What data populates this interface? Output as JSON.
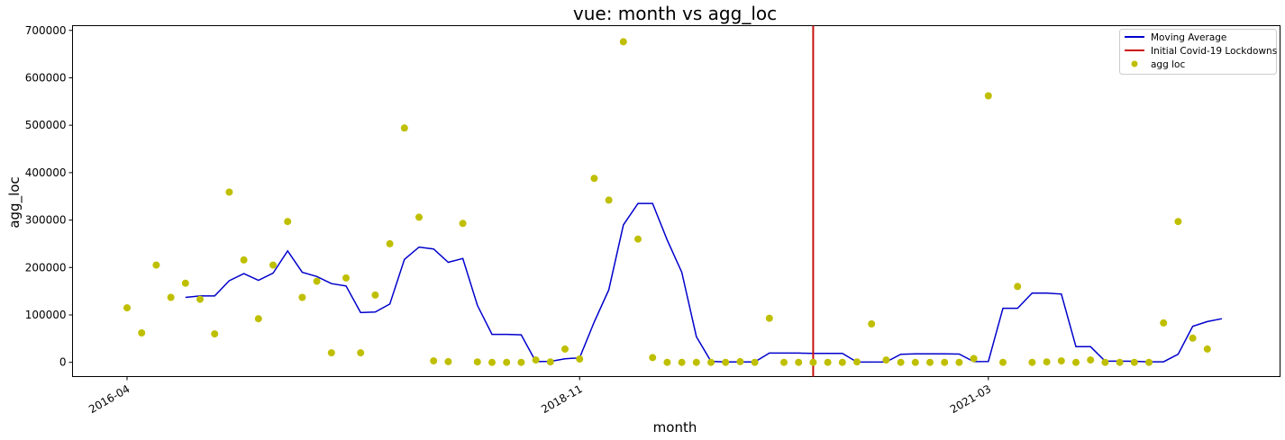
{
  "chart_data": {
    "type": "scatter",
    "title": "vue: month vs agg_loc",
    "xlabel": "month",
    "ylabel": "agg_loc",
    "x_tick_labels": [
      "2016-04",
      "2018-11",
      "2021-03"
    ],
    "y_tick_labels": [
      "0",
      "100000",
      "200000",
      "300000",
      "400000",
      "500000",
      "600000",
      "700000"
    ],
    "ylim": [
      -30000,
      710000
    ],
    "grid": false,
    "legend_position": "top-right",
    "series": [
      {
        "name": "Moving Average",
        "kind": "line",
        "color": "#0000cc",
        "points": [
          [
            "2016-08-01",
            137000
          ],
          [
            "2016-09-01",
            140000
          ],
          [
            "2016-10-01",
            140000
          ],
          [
            "2016-11-01",
            172000
          ],
          [
            "2016-12-01",
            187000
          ],
          [
            "2017-01-01",
            173000
          ],
          [
            "2017-02-01",
            188000
          ],
          [
            "2017-03-01",
            235000
          ],
          [
            "2017-04-01",
            190000
          ],
          [
            "2017-05-01",
            181000
          ],
          [
            "2017-06-01",
            166000
          ],
          [
            "2017-07-01",
            161000
          ],
          [
            "2017-08-01",
            105000
          ],
          [
            "2017-09-01",
            106000
          ],
          [
            "2017-10-01",
            123000
          ],
          [
            "2017-11-01",
            217000
          ],
          [
            "2017-12-01",
            243000
          ],
          [
            "2018-01-01",
            239000
          ],
          [
            "2018-02-01",
            211000
          ],
          [
            "2018-03-01",
            219000
          ],
          [
            "2018-04-01",
            120000
          ],
          [
            "2018-05-01",
            59000
          ],
          [
            "2018-06-01",
            59000
          ],
          [
            "2018-07-01",
            58000
          ],
          [
            "2018-08-01",
            1500
          ],
          [
            "2018-09-01",
            2000
          ],
          [
            "2018-10-01",
            7500
          ],
          [
            "2018-11-01",
            9500
          ],
          [
            "2018-12-01",
            85000
          ],
          [
            "2019-01-01",
            153000
          ],
          [
            "2019-02-01",
            290000
          ],
          [
            "2019-03-01",
            335000
          ],
          [
            "2019-04-01",
            335000
          ],
          [
            "2019-05-01",
            258000
          ],
          [
            "2019-06-01",
            190000
          ],
          [
            "2019-07-01",
            54000
          ],
          [
            "2019-08-01",
            2000
          ],
          [
            "2019-09-01",
            800
          ],
          [
            "2019-10-01",
            800
          ],
          [
            "2019-11-01",
            800
          ],
          [
            "2019-12-01",
            19500
          ],
          [
            "2020-01-01",
            19500
          ],
          [
            "2020-02-01",
            19500
          ],
          [
            "2020-03-01",
            19000
          ],
          [
            "2020-04-01",
            19000
          ],
          [
            "2020-05-01",
            19000
          ],
          [
            "2020-06-01",
            500
          ],
          [
            "2020-07-01",
            500
          ],
          [
            "2020-08-01",
            700
          ],
          [
            "2020-09-01",
            17000
          ],
          [
            "2020-10-01",
            18000
          ],
          [
            "2020-11-01",
            18000
          ],
          [
            "2020-12-01",
            18000
          ],
          [
            "2021-01-01",
            17500
          ],
          [
            "2021-02-01",
            1500
          ],
          [
            "2021-03-01",
            1800
          ],
          [
            "2021-04-01",
            114000
          ],
          [
            "2021-05-01",
            114000
          ],
          [
            "2021-06-01",
            146000
          ],
          [
            "2021-07-01",
            146000
          ],
          [
            "2021-08-01",
            144000
          ],
          [
            "2021-09-01",
            33000
          ],
          [
            "2021-10-01",
            33000
          ],
          [
            "2021-11-01",
            2500
          ],
          [
            "2021-12-01",
            2500
          ],
          [
            "2022-01-01",
            2200
          ],
          [
            "2022-02-01",
            1200
          ],
          [
            "2022-03-01",
            1200
          ],
          [
            "2022-04-01",
            17000
          ],
          [
            "2022-05-01",
            76000
          ],
          [
            "2022-06-01",
            86000
          ],
          [
            "2022-07-01",
            92000
          ]
        ]
      },
      {
        "name": "Initial Covid-19 Lockdowns",
        "kind": "vline",
        "color": "#cc1111",
        "x": "2020-03-01"
      },
      {
        "name": "agg loc",
        "kind": "scatter",
        "color": "#bfbf00",
        "points": [
          [
            "2016-04-01",
            115000
          ],
          [
            "2016-05-01",
            62000
          ],
          [
            "2016-06-01",
            205000
          ],
          [
            "2016-07-01",
            137000
          ],
          [
            "2016-08-01",
            167000
          ],
          [
            "2016-09-01",
            133000
          ],
          [
            "2016-10-01",
            60000
          ],
          [
            "2016-11-01",
            359000
          ],
          [
            "2016-12-01",
            216000
          ],
          [
            "2017-01-01",
            92000
          ],
          [
            "2017-02-01",
            205000
          ],
          [
            "2017-03-01",
            297000
          ],
          [
            "2017-04-01",
            137000
          ],
          [
            "2017-05-01",
            171000
          ],
          [
            "2017-06-01",
            20000
          ],
          [
            "2017-07-01",
            178000
          ],
          [
            "2017-08-01",
            20000
          ],
          [
            "2017-09-01",
            142000
          ],
          [
            "2017-10-01",
            250000
          ],
          [
            "2017-11-01",
            494000
          ],
          [
            "2017-12-01",
            306000
          ],
          [
            "2018-01-01",
            3000
          ],
          [
            "2018-02-01",
            1500
          ],
          [
            "2018-03-01",
            293000
          ],
          [
            "2018-04-01",
            1000
          ],
          [
            "2018-05-01",
            0
          ],
          [
            "2018-06-01",
            0
          ],
          [
            "2018-07-01",
            0
          ],
          [
            "2018-08-01",
            5000
          ],
          [
            "2018-09-01",
            1000
          ],
          [
            "2018-10-01",
            28000
          ],
          [
            "2018-11-01",
            7000
          ],
          [
            "2018-12-01",
            388000
          ],
          [
            "2019-01-01",
            342000
          ],
          [
            "2019-02-01",
            676000
          ],
          [
            "2019-03-01",
            260000
          ],
          [
            "2019-04-01",
            10000
          ],
          [
            "2019-05-01",
            0
          ],
          [
            "2019-06-01",
            0
          ],
          [
            "2019-07-01",
            0
          ],
          [
            "2019-08-01",
            0
          ],
          [
            "2019-09-01",
            0
          ],
          [
            "2019-10-01",
            1500
          ],
          [
            "2019-11-01",
            0
          ],
          [
            "2019-12-01",
            93000
          ],
          [
            "2020-01-01",
            0
          ],
          [
            "2020-02-01",
            0
          ],
          [
            "2020-03-01",
            0
          ],
          [
            "2020-04-01",
            0
          ],
          [
            "2020-05-01",
            0
          ],
          [
            "2020-06-01",
            1000
          ],
          [
            "2020-07-01",
            81000
          ],
          [
            "2020-08-01",
            5000
          ],
          [
            "2020-09-01",
            0
          ],
          [
            "2020-10-01",
            0
          ],
          [
            "2020-11-01",
            0
          ],
          [
            "2020-12-01",
            0
          ],
          [
            "2021-01-01",
            0
          ],
          [
            "2021-02-01",
            8000
          ],
          [
            "2021-03-01",
            562000
          ],
          [
            "2021-04-01",
            0
          ],
          [
            "2021-05-01",
            160000
          ],
          [
            "2021-06-01",
            0
          ],
          [
            "2021-07-01",
            1000
          ],
          [
            "2021-08-01",
            3000
          ],
          [
            "2021-09-01",
            0
          ],
          [
            "2021-10-01",
            5000
          ],
          [
            "2021-11-01",
            0
          ],
          [
            "2021-12-01",
            0
          ],
          [
            "2022-01-01",
            0
          ],
          [
            "2022-02-01",
            0
          ],
          [
            "2022-03-01",
            83000
          ],
          [
            "2022-04-01",
            297000
          ],
          [
            "2022-05-01",
            51000
          ],
          [
            "2022-06-01",
            28000
          ]
        ]
      }
    ]
  }
}
